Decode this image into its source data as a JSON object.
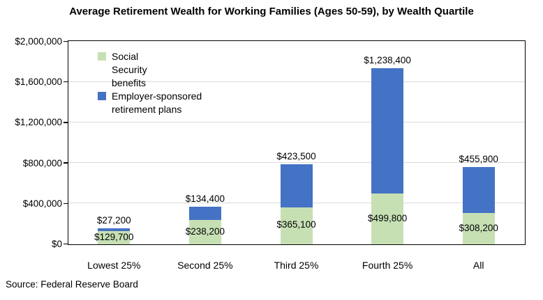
{
  "title": "Average Retirement Wealth for Working Families (Ages 50-59), by Wealth Quartile",
  "source": "Source: Federal Reserve Board",
  "chart_data": {
    "type": "bar",
    "stacked": true,
    "title": "Average Retirement Wealth for Working Families (Ages 50-59), by Wealth Quartile",
    "categories": [
      "Lowest 25%",
      "Second 25%",
      "Third 25%",
      "Fourth 25%",
      "All"
    ],
    "series": [
      {
        "name": "Social Security benefits",
        "color": "#C6E0B4",
        "values": [
          129700,
          238200,
          365100,
          499800,
          308200
        ],
        "labels": [
          "$129,700",
          "$238,200",
          "$365,100",
          "$499,800",
          "$308,200"
        ]
      },
      {
        "name": "Employer-sponsored retirement plans",
        "color": "#4472C4",
        "values": [
          27200,
          134400,
          423500,
          1238400,
          455900
        ],
        "labels": [
          "$27,200",
          "$134,400",
          "$423,500",
          "$1,238,400",
          "$455,900"
        ]
      }
    ],
    "legend": [
      {
        "label": "Social Security benefits",
        "color": "#C6E0B4"
      },
      {
        "label": "Employer-sponsored retirement plans",
        "color": "#4472C4"
      }
    ],
    "legend_position": "inside-top-left",
    "ylim": [
      0,
      2000000
    ],
    "ytick_interval": 400000,
    "ytick_labels": [
      "$0",
      "$400,000",
      "$800,000",
      "$1,200,000",
      "$1,600,000",
      "$2,000,000"
    ],
    "grid": true,
    "gridline_color": "#D9D9D9",
    "xlabel": "",
    "ylabel": ""
  }
}
